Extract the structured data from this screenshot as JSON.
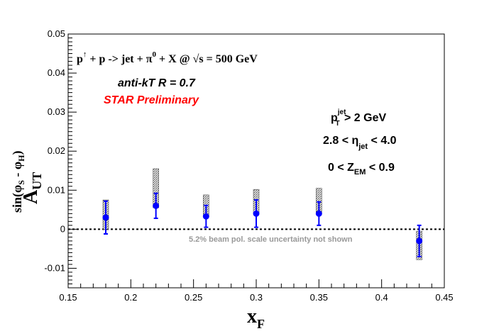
{
  "chart_data": {
    "type": "scatter",
    "xlabel_main": "x",
    "xlabel_sub": "F",
    "ylabel_main": "A",
    "ylabel_sub": "UT",
    "ylabel_sup": "sin(φ",
    "ylabel_sup_s": "S",
    "ylabel_sup_mid": " - φ",
    "ylabel_sup_h": "H",
    "ylabel_sup_end": ")",
    "xlim": [
      0.15,
      0.45
    ],
    "ylim": [
      -0.015,
      0.05
    ],
    "x_ticks": [
      "0.15",
      "0.2",
      "0.25",
      "0.3",
      "0.35",
      "0.4",
      "0.45"
    ],
    "y_ticks": [
      "-0.01",
      "0",
      "0.01",
      "0.02",
      "0.03",
      "0.04",
      "0.05"
    ],
    "zero_line": true,
    "marker_color": "#0000ff",
    "syst_color": "#555555",
    "label_red": "#ff0000",
    "note_color": "#999999",
    "points": [
      {
        "x": 0.18,
        "y": 0.003,
        "err": 0.0042,
        "syst_lo": 0.0,
        "syst_hi": 0.0075
      },
      {
        "x": 0.22,
        "y": 0.006,
        "err": 0.0032,
        "syst_lo": 0.0055,
        "syst_hi": 0.0155
      },
      {
        "x": 0.26,
        "y": 0.0033,
        "err": 0.0028,
        "syst_lo": 0.0035,
        "syst_hi": 0.0088
      },
      {
        "x": 0.3,
        "y": 0.004,
        "err": 0.0035,
        "syst_lo": 0.0042,
        "syst_hi": 0.0102
      },
      {
        "x": 0.35,
        "y": 0.004,
        "err": 0.003,
        "syst_lo": 0.0042,
        "syst_hi": 0.0105
      },
      {
        "x": 0.43,
        "y": -0.003,
        "err": 0.004,
        "syst_lo": -0.0078,
        "syst_hi": -0.0005
      }
    ],
    "annotations": {
      "reaction_p": "p",
      "reaction_up": "↑",
      "reaction_mid": " + p -> jet +  π",
      "reaction_zero": "0",
      "reaction_end": " + X @  √s = 500 GeV",
      "algo": "anti-kT R = 0.7",
      "prelim": "STAR Preliminary",
      "pt_main": "p",
      "pt_sup": "jet",
      "pt_sub": "T",
      "pt_end": " > 2 GeV",
      "eta_start": "2.8 < η",
      "eta_sub": "jet",
      "eta_end": " < 4.0",
      "zem_start": "0 < Z",
      "zem_sub": "EM",
      "zem_end": " < 0.9",
      "note": "5.2% beam pol. scale uncertainty not shown"
    }
  }
}
